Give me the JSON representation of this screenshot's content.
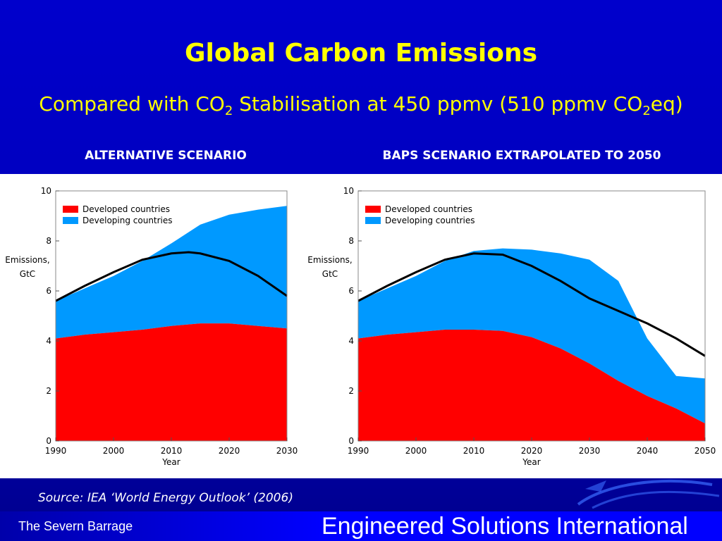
{
  "slide": {
    "title": "Global Carbon Emissions",
    "subtitle_parts": [
      "Compared with CO",
      "2",
      " Stabilisation at 450 ppmv (510 ppmv CO",
      "2",
      "eq)"
    ],
    "left_heading": "ALTERNATIVE SCENARIO",
    "right_heading": "BAPS SCENARIO EXTRAPOLATED TO 2050",
    "source": "Source: IEA ‘World Energy Outlook’ (2006)",
    "footer_left": "The Severn Barrage",
    "footer_right": "Engineered Solutions International",
    "colors": {
      "background": "#0000cc",
      "title": "#ffff00",
      "developed": "#ff0000",
      "developing": "#0099ff",
      "line": "#000000"
    }
  },
  "chart_data": [
    {
      "type": "area",
      "stacked": true,
      "ylabel": "Emissions, GtC",
      "xlabel": "Year",
      "xlim": [
        1990,
        2030
      ],
      "ylim": [
        0,
        10
      ],
      "xticks": [
        1990,
        2000,
        2010,
        2020,
        2030
      ],
      "yticks": [
        0,
        2,
        4,
        6,
        8,
        10
      ],
      "legend": "top-left",
      "x": [
        1990,
        1995,
        2000,
        2005,
        2010,
        2015,
        2020,
        2025,
        2030
      ],
      "series": [
        {
          "name": "Developed countries",
          "color": "#ff0000",
          "values": [
            4.1,
            4.25,
            4.35,
            4.45,
            4.6,
            4.7,
            4.7,
            4.6,
            4.5
          ]
        },
        {
          "name": "Developing countries",
          "color": "#0099ff",
          "values": [
            1.5,
            1.85,
            2.25,
            2.75,
            3.3,
            3.95,
            4.35,
            4.65,
            4.9
          ]
        }
      ],
      "stabilisation_line": {
        "x": [
          1990,
          1995,
          2000,
          2005,
          2010,
          2013,
          2015,
          2020,
          2025,
          2030
        ],
        "values": [
          5.6,
          6.2,
          6.75,
          7.25,
          7.5,
          7.55,
          7.5,
          7.2,
          6.6,
          5.8
        ]
      }
    },
    {
      "type": "area",
      "stacked": true,
      "ylabel": "Emissions, GtC",
      "xlabel": "Year",
      "xlim": [
        1990,
        2050
      ],
      "ylim": [
        0,
        10
      ],
      "xticks": [
        1990,
        2000,
        2010,
        2020,
        2030,
        2040,
        2050
      ],
      "yticks": [
        0,
        2,
        4,
        6,
        8,
        10
      ],
      "legend": "top-left",
      "x": [
        1990,
        1995,
        2000,
        2005,
        2010,
        2015,
        2020,
        2025,
        2030,
        2035,
        2040,
        2045,
        2050
      ],
      "series": [
        {
          "name": "Developed countries",
          "color": "#ff0000",
          "values": [
            4.1,
            4.25,
            4.35,
            4.45,
            4.45,
            4.4,
            4.15,
            3.7,
            3.1,
            2.4,
            1.8,
            1.3,
            0.7
          ]
        },
        {
          "name": "Developing countries",
          "color": "#0099ff",
          "values": [
            1.5,
            1.85,
            2.25,
            2.75,
            3.15,
            3.3,
            3.5,
            3.8,
            4.15,
            4.0,
            2.3,
            1.3,
            1.8
          ]
        }
      ],
      "stabilisation_line": {
        "x": [
          1990,
          1995,
          2000,
          2005,
          2010,
          2015,
          2020,
          2025,
          2030,
          2035,
          2040,
          2045,
          2050
        ],
        "values": [
          5.6,
          6.2,
          6.75,
          7.25,
          7.5,
          7.45,
          7.0,
          6.4,
          5.7,
          5.2,
          4.7,
          4.1,
          3.4
        ]
      }
    }
  ]
}
